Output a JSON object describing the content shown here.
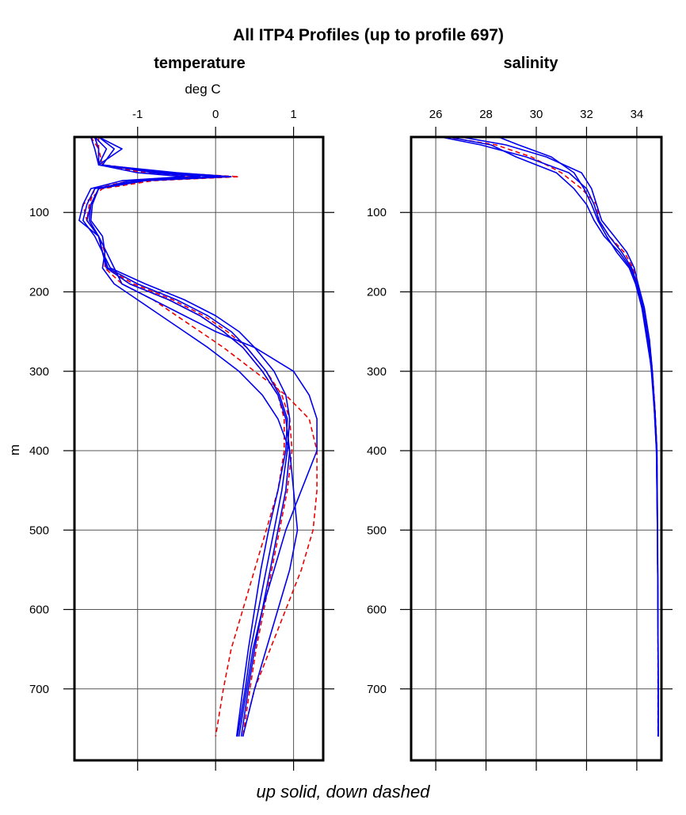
{
  "chart_data": [
    {
      "type": "line",
      "title": "All ITP4 Profiles (up to profile 697)",
      "panel_title": "temperature",
      "xlabel": "deg C",
      "ylabel": "m",
      "xlim": [
        -1.81,
        1.38
      ],
      "ylim": [
        790,
        5
      ],
      "y_inverted": true,
      "grid": true,
      "x_ticks": [
        -1,
        0,
        1
      ],
      "x_tick_labels": [
        "-1",
        "0",
        "1"
      ],
      "y_ticks": [
        100,
        200,
        300,
        400,
        500,
        600,
        700
      ],
      "y_tick_labels": [
        "100",
        "200",
        "300",
        "400",
        "500",
        "600",
        "700"
      ],
      "depth": [
        5,
        20,
        40,
        50,
        55,
        60,
        70,
        90,
        110,
        130,
        150,
        170,
        190,
        210,
        230,
        250,
        270,
        300,
        330,
        360,
        400,
        450,
        500,
        550,
        600,
        650,
        700,
        760
      ],
      "series": [
        {
          "direction": "up",
          "values": [
            -1.55,
            -1.5,
            -1.5,
            -0.5,
            0.2,
            -0.9,
            -1.5,
            -1.6,
            -1.65,
            -1.5,
            -1.45,
            -1.4,
            -1.1,
            -0.6,
            -0.2,
            0.1,
            0.35,
            0.6,
            0.8,
            0.9,
            0.95,
            0.9,
            0.8,
            0.7,
            0.6,
            0.5,
            0.42,
            0.33
          ]
        },
        {
          "direction": "up",
          "values": [
            -1.5,
            -1.3,
            -1.45,
            -0.8,
            -0.2,
            -1.0,
            -1.55,
            -1.65,
            -1.7,
            -1.55,
            -1.45,
            -1.35,
            -0.9,
            -0.4,
            0.0,
            0.3,
            0.5,
            0.75,
            0.9,
            0.95,
            0.92,
            0.85,
            0.75,
            0.65,
            0.55,
            0.45,
            0.38,
            0.28
          ]
        },
        {
          "direction": "up",
          "values": [
            -1.6,
            -1.55,
            -1.5,
            -0.7,
            0.0,
            -1.1,
            -1.5,
            -1.58,
            -1.6,
            -1.45,
            -1.42,
            -1.45,
            -1.3,
            -1.0,
            -0.7,
            -0.4,
            -0.1,
            0.3,
            0.6,
            0.8,
            0.95,
            1.0,
            1.05,
            0.95,
            0.8,
            0.65,
            0.5,
            0.35
          ]
        },
        {
          "direction": "up",
          "values": [
            -1.5,
            -1.2,
            -1.5,
            -1.0,
            -0.4,
            -1.2,
            -1.6,
            -1.7,
            -1.75,
            -1.5,
            -1.4,
            -1.3,
            -1.2,
            -0.8,
            -0.4,
            0.0,
            0.5,
            1.0,
            1.2,
            1.3,
            1.3,
            1.1,
            0.9,
            0.75,
            0.6,
            0.48,
            0.4,
            0.3
          ]
        },
        {
          "direction": "up",
          "values": [
            -1.55,
            -1.4,
            -1.5,
            -0.6,
            0.1,
            -0.95,
            -1.5,
            -1.6,
            -1.62,
            -1.5,
            -1.45,
            -1.38,
            -1.0,
            -0.5,
            -0.1,
            0.2,
            0.4,
            0.65,
            0.82,
            0.92,
            0.9,
            0.8,
            0.68,
            0.58,
            0.5,
            0.42,
            0.35,
            0.27
          ]
        },
        {
          "direction": "down",
          "values": [
            -1.5,
            -1.5,
            -1.45,
            -0.6,
            0.3,
            -0.8,
            -1.45,
            -1.7,
            -1.65,
            -1.5,
            -1.45,
            -1.4,
            -1.05,
            -0.55,
            -0.15,
            0.15,
            0.4,
            0.65,
            0.85,
            0.95,
            0.98,
            0.92,
            0.82,
            0.72,
            0.62,
            0.52,
            0.44,
            0.35
          ]
        },
        {
          "direction": "down",
          "values": [
            -1.55,
            -1.5,
            -1.5,
            -0.9,
            -0.3,
            -1.1,
            -1.55,
            -1.62,
            -1.65,
            -1.5,
            -1.42,
            -1.42,
            -1.2,
            -0.8,
            -0.5,
            -0.2,
            0.1,
            0.5,
            0.9,
            1.2,
            1.3,
            1.3,
            1.25,
            1.1,
            0.9,
            0.7,
            0.5,
            0.35
          ]
        },
        {
          "direction": "down",
          "values": [
            -1.6,
            -1.5,
            -1.5,
            -0.7,
            0.2,
            -0.9,
            -1.5,
            -1.6,
            -1.65,
            -1.5,
            -1.45,
            -1.4,
            -1.1,
            -0.6,
            -0.2,
            0.1,
            0.35,
            0.6,
            0.8,
            0.88,
            0.88,
            0.8,
            0.65,
            0.5,
            0.35,
            0.2,
            0.1,
            0.0
          ]
        }
      ]
    },
    {
      "type": "line",
      "panel_title": "salinity",
      "xlim": [
        25.02,
        34.98
      ],
      "ylim": [
        790,
        5
      ],
      "y_inverted": true,
      "grid": true,
      "x_ticks": [
        26,
        28,
        30,
        32,
        34
      ],
      "x_tick_labels": [
        "26",
        "28",
        "30",
        "32",
        "34"
      ],
      "y_ticks": [
        100,
        200,
        300,
        400,
        500,
        600,
        700
      ],
      "y_tick_labels": [
        "100",
        "200",
        "300",
        "400",
        "500",
        "600",
        "700"
      ],
      "depth": [
        5,
        15,
        30,
        50,
        70,
        90,
        110,
        130,
        150,
        170,
        190,
        220,
        260,
        300,
        350,
        400,
        500,
        600,
        700,
        760
      ],
      "series": [
        {
          "direction": "up",
          "values": [
            26.2,
            27.8,
            29.6,
            31.3,
            32.0,
            32.3,
            32.5,
            32.9,
            33.4,
            33.8,
            34.0,
            34.25,
            34.45,
            34.6,
            34.7,
            34.78,
            34.82,
            34.84,
            34.85,
            34.85
          ]
        },
        {
          "direction": "up",
          "values": [
            27.0,
            28.8,
            30.4,
            31.8,
            32.2,
            32.4,
            32.6,
            33.1,
            33.6,
            33.9,
            34.05,
            34.3,
            34.5,
            34.62,
            34.72,
            34.8,
            34.83,
            34.84,
            34.85,
            34.86
          ]
        },
        {
          "direction": "up",
          "values": [
            28.5,
            29.3,
            30.6,
            31.5,
            31.9,
            32.2,
            32.45,
            32.8,
            33.2,
            33.7,
            33.95,
            34.2,
            34.45,
            34.58,
            34.7,
            34.78,
            34.82,
            34.84,
            34.85,
            34.85
          ]
        },
        {
          "direction": "up",
          "values": [
            26.5,
            28.2,
            29.2,
            30.8,
            31.5,
            32.0,
            32.3,
            32.7,
            33.3,
            33.75,
            34.0,
            34.2,
            34.4,
            34.6,
            34.72,
            34.8,
            34.82,
            34.84,
            34.85,
            34.85
          ]
        },
        {
          "direction": "down",
          "values": [
            26.4,
            28.4,
            29.8,
            31.0,
            31.8,
            32.4,
            32.5,
            32.9,
            33.5,
            33.85,
            34.0,
            34.25,
            34.5,
            34.62,
            34.73,
            34.8,
            34.82,
            34.84,
            34.84,
            34.84
          ]
        }
      ]
    }
  ],
  "footer": "up solid, down dashed",
  "colors": {
    "up": "#0000ee",
    "down": "#ee0000",
    "grid": "#555555",
    "frame": "#000000"
  }
}
